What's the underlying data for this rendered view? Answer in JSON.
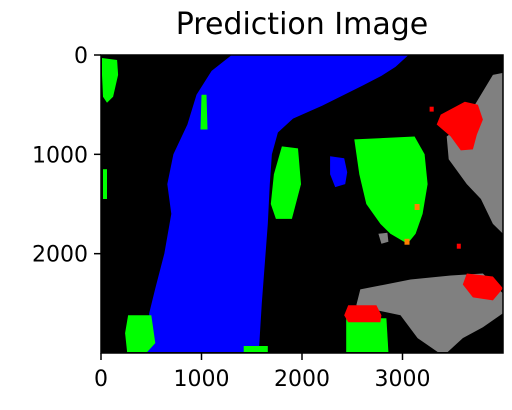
{
  "chart_data": {
    "type": "heatmap",
    "title": "Prediction Image",
    "xlabel": "",
    "ylabel": "",
    "x_ticks": [
      0,
      1000,
      2000,
      3000
    ],
    "y_ticks": [
      0,
      1000,
      2000
    ],
    "xlim": [
      0,
      4000
    ],
    "ylim": [
      3000,
      0
    ],
    "image_size": [
      4000,
      3000
    ],
    "grid": false,
    "colors": {
      "background": "#000000",
      "blue": "#0000ff",
      "green": "#00ff00",
      "red": "#ff0000",
      "gray": "#808080",
      "orange": "#ff8000"
    },
    "regions": [
      {
        "name": "blue-region-main",
        "color": "blue",
        "points": [
          [
            1300,
            0
          ],
          [
            3060,
            0
          ],
          [
            2930,
            120
          ],
          [
            2790,
            210
          ],
          [
            2600,
            310
          ],
          [
            2400,
            410
          ],
          [
            2200,
            510
          ],
          [
            1910,
            640
          ],
          [
            1760,
            780
          ],
          [
            1700,
            1000
          ],
          [
            1680,
            1300
          ],
          [
            1660,
            1700
          ],
          [
            1630,
            2100
          ],
          [
            1600,
            2500
          ],
          [
            1570,
            2990
          ],
          [
            460,
            2990
          ],
          [
            480,
            2600
          ],
          [
            540,
            2350
          ],
          [
            630,
            2000
          ],
          [
            700,
            1600
          ],
          [
            660,
            1300
          ],
          [
            720,
            1000
          ],
          [
            860,
            700
          ],
          [
            950,
            400
          ],
          [
            1100,
            160
          ]
        ]
      },
      {
        "name": "blue-region-small",
        "color": "blue",
        "points": [
          [
            2280,
            1020
          ],
          [
            2420,
            1040
          ],
          [
            2450,
            1180
          ],
          [
            2430,
            1300
          ],
          [
            2330,
            1330
          ],
          [
            2280,
            1200
          ]
        ]
      },
      {
        "name": "green-region-top-left",
        "color": "green",
        "points": [
          [
            10,
            30
          ],
          [
            160,
            50
          ],
          [
            170,
            200
          ],
          [
            120,
            420
          ],
          [
            60,
            480
          ],
          [
            20,
            420
          ],
          [
            10,
            200
          ]
        ]
      },
      {
        "name": "green-region-left-edge",
        "color": "green",
        "points": [
          [
            20,
            1150
          ],
          [
            60,
            1150
          ],
          [
            60,
            1450
          ],
          [
            20,
            1450
          ]
        ]
      },
      {
        "name": "green-region-small-mid",
        "color": "green",
        "points": [
          [
            1000,
            400
          ],
          [
            1050,
            400
          ],
          [
            1060,
            750
          ],
          [
            990,
            750
          ]
        ]
      },
      {
        "name": "green-region-bottom-left",
        "color": "green",
        "points": [
          [
            270,
            2620
          ],
          [
            500,
            2620
          ],
          [
            540,
            2900
          ],
          [
            460,
            2990
          ],
          [
            260,
            2990
          ],
          [
            240,
            2800
          ]
        ]
      },
      {
        "name": "green-region-center",
        "color": "green",
        "points": [
          [
            1800,
            920
          ],
          [
            1960,
            940
          ],
          [
            1990,
            1300
          ],
          [
            1900,
            1650
          ],
          [
            1740,
            1650
          ],
          [
            1690,
            1500
          ],
          [
            1720,
            1200
          ]
        ]
      },
      {
        "name": "green-region-right",
        "color": "green",
        "points": [
          [
            2520,
            850
          ],
          [
            3120,
            820
          ],
          [
            3220,
            1000
          ],
          [
            3250,
            1300
          ],
          [
            3200,
            1600
          ],
          [
            3130,
            1800
          ],
          [
            3050,
            1900
          ],
          [
            2880,
            1800
          ],
          [
            2780,
            1700
          ],
          [
            2640,
            1500
          ],
          [
            2570,
            1200
          ]
        ]
      },
      {
        "name": "green-region-bottom-center",
        "color": "green",
        "points": [
          [
            2440,
            2650
          ],
          [
            2840,
            2650
          ],
          [
            2860,
            2990
          ],
          [
            2440,
            2990
          ]
        ]
      },
      {
        "name": "green-region-bottom-sliver",
        "color": "green",
        "points": [
          [
            1420,
            2930
          ],
          [
            1660,
            2930
          ],
          [
            1660,
            2990
          ],
          [
            1420,
            2990
          ]
        ]
      },
      {
        "name": "gray-region-right",
        "color": "gray",
        "points": [
          [
            3900,
            200
          ],
          [
            4000,
            180
          ],
          [
            4000,
            1800
          ],
          [
            3900,
            1700
          ],
          [
            3780,
            1450
          ],
          [
            3640,
            1300
          ],
          [
            3460,
            1050
          ],
          [
            3440,
            820
          ],
          [
            3560,
            730
          ],
          [
            3720,
            500
          ]
        ]
      },
      {
        "name": "gray-region-bottom-right",
        "color": "gray",
        "points": [
          [
            2580,
            2360
          ],
          [
            3080,
            2260
          ],
          [
            3480,
            2220
          ],
          [
            3800,
            2200
          ],
          [
            4000,
            2400
          ],
          [
            4000,
            2600
          ],
          [
            3800,
            2740
          ],
          [
            3600,
            2850
          ],
          [
            3450,
            2990
          ],
          [
            3350,
            2990
          ],
          [
            3150,
            2850
          ],
          [
            2980,
            2620
          ],
          [
            2700,
            2560
          ],
          [
            2540,
            2520
          ]
        ]
      },
      {
        "name": "gray-region-notch",
        "color": "gray",
        "points": [
          [
            2760,
            1800
          ],
          [
            2850,
            1790
          ],
          [
            2860,
            1880
          ],
          [
            2790,
            1900
          ]
        ]
      },
      {
        "name": "red-region-top-right",
        "color": "red",
        "points": [
          [
            3620,
            470
          ],
          [
            3750,
            500
          ],
          [
            3800,
            650
          ],
          [
            3740,
            800
          ],
          [
            3700,
            950
          ],
          [
            3580,
            960
          ],
          [
            3480,
            820
          ],
          [
            3340,
            700
          ],
          [
            3380,
            600
          ]
        ]
      },
      {
        "name": "red-region-right-dot",
        "color": "red",
        "points": [
          [
            3270,
            520
          ],
          [
            3310,
            520
          ],
          [
            3310,
            570
          ],
          [
            3270,
            570
          ]
        ]
      },
      {
        "name": "red-region-bottom-right",
        "color": "red",
        "points": [
          [
            3640,
            2200
          ],
          [
            3900,
            2230
          ],
          [
            4000,
            2350
          ],
          [
            3900,
            2470
          ],
          [
            3700,
            2440
          ],
          [
            3600,
            2310
          ]
        ]
      },
      {
        "name": "red-region-bottom-center",
        "color": "red",
        "points": [
          [
            2460,
            2520
          ],
          [
            2740,
            2520
          ],
          [
            2790,
            2620
          ],
          [
            2780,
            2690
          ],
          [
            2460,
            2690
          ],
          [
            2420,
            2620
          ]
        ]
      },
      {
        "name": "red-region-small-dot",
        "color": "red",
        "points": [
          [
            3540,
            1900
          ],
          [
            3580,
            1900
          ],
          [
            3580,
            1950
          ],
          [
            3540,
            1950
          ]
        ]
      },
      {
        "name": "orange-region-dot-upper",
        "color": "orange",
        "points": [
          [
            3120,
            1500
          ],
          [
            3170,
            1500
          ],
          [
            3170,
            1560
          ],
          [
            3120,
            1560
          ]
        ]
      },
      {
        "name": "orange-region-dot-lower",
        "color": "orange",
        "points": [
          [
            3020,
            1850
          ],
          [
            3070,
            1850
          ],
          [
            3070,
            1910
          ],
          [
            3020,
            1910
          ]
        ]
      }
    ]
  }
}
